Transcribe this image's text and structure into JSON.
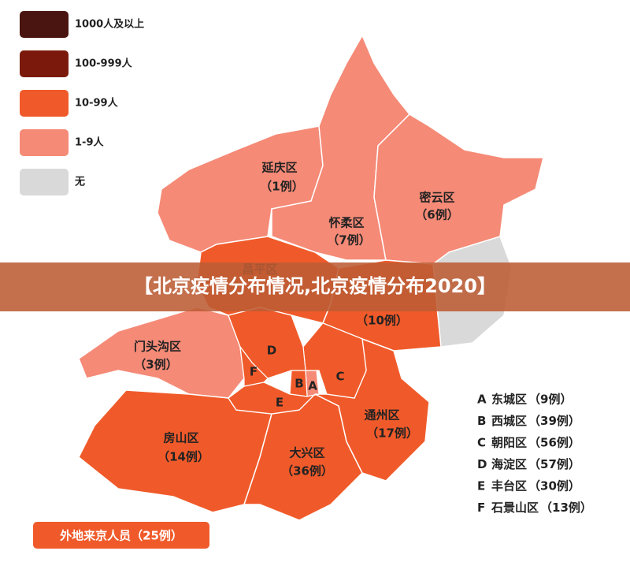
{
  "legend": [
    {
      "label": "1000人及以上",
      "color": "#4a1510"
    },
    {
      "label": "100-999人",
      "color": "#7b1a0c"
    },
    {
      "label": "10-99人",
      "color": "#f05a2a"
    },
    {
      "label": "1-9人",
      "color": "#f58a77"
    },
    {
      "label": "无",
      "color": "#d9d9d9"
    }
  ],
  "regions": [
    {
      "name": "延庆区",
      "count": "（1例）",
      "color": "#f58a77"
    },
    {
      "name": "怀柔区",
      "count": "（7例）",
      "color": "#f58a77"
    },
    {
      "name": "密云区",
      "count": "（6例）",
      "color": "#f58a77"
    },
    {
      "color": "#d9d9d9"
    },
    {
      "name": "昌平区",
      "color": "#f05a2a"
    },
    {
      "count": "（10例）",
      "color": "#f05a2a"
    },
    {
      "name": "门头沟区",
      "count": "（3例）",
      "color": "#f58a77"
    },
    {
      "name": "房山区",
      "count": "（14例）",
      "color": "#f05a2a"
    },
    {
      "name": "大兴区",
      "count": "（36例）",
      "color": "#f05a2a"
    },
    {
      "name": "通州区",
      "count": "（17例）",
      "color": "#f05a2a"
    }
  ],
  "districts": [
    {
      "letter": "A",
      "name": "东城区",
      "count": "（9例）",
      "color": "#f58a77"
    },
    {
      "letter": "B",
      "name": "西城区",
      "count": "（39例）",
      "color": "#f05a2a"
    },
    {
      "letter": "C",
      "name": "朝阳区",
      "count": "（56例）",
      "color": "#f05a2a"
    },
    {
      "letter": "D",
      "name": "海淀区",
      "count": "（57例）",
      "color": "#f05a2a"
    },
    {
      "letter": "E",
      "name": "丰台区",
      "count": "（30例）",
      "color": "#f05a2a"
    },
    {
      "letter": "F",
      "name": "石景山区",
      "count": "（13例）",
      "color": "#f05a2a"
    }
  ],
  "footer": {
    "label": "外地来京人员（25例）",
    "color": "#f05a2a"
  },
  "banner": "【北京疫情分布情况,北京疫情分布2020】"
}
